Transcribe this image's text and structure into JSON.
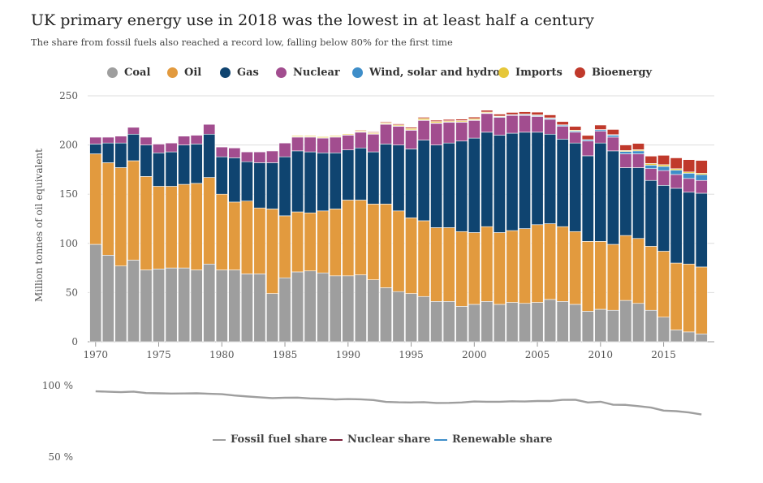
{
  "title": "UK primary energy use in 2018 was the lowest in at least half a century",
  "subtitle": "The share from fossil fuels also reached a record low, falling below 80% for the first time",
  "chart_data": [
    {
      "type": "bar",
      "stacked": true,
      "ylabel": "Million tonnes of oil equivalent",
      "ylim": [
        0,
        250
      ],
      "yticks": [
        0,
        50,
        100,
        150,
        200,
        250
      ],
      "xticks": [
        1970,
        1975,
        1980,
        1985,
        1990,
        1995,
        2000,
        2005,
        2010,
        2015
      ],
      "grid": true,
      "legend_position": "top",
      "x": [
        1970,
        1971,
        1972,
        1973,
        1974,
        1975,
        1976,
        1977,
        1978,
        1979,
        1980,
        1981,
        1982,
        1983,
        1984,
        1985,
        1986,
        1987,
        1988,
        1989,
        1990,
        1991,
        1992,
        1993,
        1994,
        1995,
        1996,
        1997,
        1998,
        1999,
        2000,
        2001,
        2002,
        2003,
        2004,
        2005,
        2006,
        2007,
        2008,
        2009,
        2010,
        2011,
        2012,
        2013,
        2014,
        2015,
        2016,
        2017,
        2018
      ],
      "series": [
        {
          "name": "Coal",
          "color": "#9e9e9e",
          "values": [
            99,
            88,
            77,
            83,
            73,
            74,
            75,
            75,
            73,
            79,
            73,
            73,
            69,
            69,
            49,
            65,
            71,
            72,
            70,
            67,
            67,
            68,
            63,
            55,
            51,
            49,
            46,
            41,
            41,
            36,
            38,
            41,
            38,
            40,
            39,
            40,
            43,
            41,
            38,
            31,
            33,
            32,
            42,
            39,
            32,
            25,
            12,
            10,
            8
          ]
        },
        {
          "name": "Oil",
          "color": "#e29a3e",
          "values": [
            92,
            94,
            100,
            101,
            95,
            84,
            83,
            85,
            88,
            88,
            77,
            69,
            74,
            67,
            86,
            63,
            61,
            59,
            63,
            68,
            77,
            76,
            77,
            85,
            82,
            77,
            77,
            75,
            75,
            76,
            73,
            76,
            73,
            73,
            76,
            79,
            77,
            76,
            74,
            71,
            69,
            67,
            66,
            66,
            65,
            67,
            68,
            69,
            68
          ]
        },
        {
          "name": "Gas",
          "color": "#0f4470",
          "values": [
            10,
            20,
            25,
            27,
            32,
            34,
            35,
            40,
            40,
            44,
            38,
            45,
            40,
            46,
            47,
            60,
            62,
            62,
            59,
            57,
            51,
            53,
            53,
            61,
            67,
            70,
            82,
            84,
            86,
            92,
            96,
            96,
            99,
            99,
            98,
            94,
            91,
            89,
            90,
            87,
            100,
            95,
            69,
            72,
            67,
            67,
            76,
            73,
            75
          ]
        },
        {
          "name": "Nuclear",
          "color": "#a24d8f",
          "values": [
            7,
            6,
            7,
            7,
            8,
            9,
            9,
            9,
            9,
            10,
            10,
            10,
            10,
            11,
            12,
            14,
            14,
            15,
            15,
            16,
            15,
            16,
            18,
            20,
            19,
            19,
            20,
            22,
            21,
            19,
            18,
            19,
            18,
            18,
            17,
            16,
            15,
            13,
            11,
            15,
            12,
            14,
            14,
            14,
            12,
            15,
            14,
            14,
            13
          ]
        },
        {
          "name": "Wind, solar and hydro",
          "color": "#3e8ec9",
          "values": [
            0.4,
            0.4,
            0.4,
            0.4,
            0.4,
            0.4,
            0.4,
            0.4,
            0.4,
            0.4,
            0.4,
            0.4,
            0.4,
            0.4,
            0.4,
            0.4,
            0.4,
            0.4,
            0.4,
            0.4,
            0.4,
            0.5,
            0.5,
            0.5,
            0.5,
            0.5,
            0.5,
            0.5,
            0.6,
            0.6,
            0.6,
            0.6,
            0.7,
            0.7,
            0.8,
            0.9,
            1,
            1.1,
            1.2,
            1.3,
            1.5,
            2,
            2.4,
            3,
            3.5,
            4.2,
            4.4,
            5.3,
            5.8
          ]
        },
        {
          "name": "Imports",
          "color": "#e6c73a",
          "values": [
            0,
            0,
            0,
            0,
            0,
            0,
            0,
            0,
            0,
            0,
            0,
            0,
            0,
            0,
            0,
            0,
            1,
            1,
            1,
            1,
            1,
            1,
            1,
            1,
            1,
            1.3,
            1.5,
            1.4,
            1.0,
            1.2,
            1.2,
            0.9,
            0.7,
            0.2,
            0.6,
            0.7,
            0.6,
            0.4,
            0.9,
            0.2,
            0.2,
            0.5,
            1.0,
            1.2,
            1.7,
            1.8,
            1.5,
            1.3,
            1.5
          ]
        },
        {
          "name": "Bioenergy",
          "color": "#c0392b",
          "values": [
            0,
            0,
            0,
            0,
            0,
            0,
            0,
            0,
            0,
            0,
            0,
            0,
            0,
            0,
            0,
            0,
            0,
            0,
            0,
            0,
            0.5,
            0.7,
            0.8,
            0.9,
            1.0,
            1.2,
            1.2,
            1.3,
            1.4,
            1.5,
            1.6,
            1.8,
            2.0,
            2.2,
            2.4,
            2.8,
            3,
            3.3,
            3.8,
            4.2,
            4.6,
            5.3,
            5.6,
            6.4,
            7.5,
            9.5,
            11,
            12.5,
            13
          ]
        }
      ]
    },
    {
      "type": "line",
      "ylim": [
        50,
        100
      ],
      "yticks": [
        "100 %",
        "50 %"
      ],
      "series": [
        {
          "name": "Fossil fuel share",
          "color": "#9e9e9e",
          "values": [
            96,
            95.7,
            95.4,
            95.8,
            94.8,
            94.6,
            94.4,
            94.5,
            94.6,
            94.3,
            94.0,
            93.1,
            92.4,
            91.8,
            91.2,
            91.5,
            91.6,
            91.0,
            90.8,
            90.3,
            90.6,
            90.4,
            89.9,
            88.6,
            88.3,
            88.2,
            88.4,
            87.8,
            87.9,
            88.2,
            88.9,
            88.7,
            88.7,
            89.0,
            88.9,
            89.2,
            89.2,
            90.0,
            90.1,
            88.2,
            88.7,
            86.6,
            86.5,
            85.6,
            84.6,
            82.5,
            82.1,
            81.2,
            79.8
          ]
        },
        {
          "name": "Nuclear share",
          "color": "#7b1f3a",
          "values": []
        },
        {
          "name": "Renewable share",
          "color": "#3e8ec9",
          "values": []
        }
      ]
    }
  ]
}
